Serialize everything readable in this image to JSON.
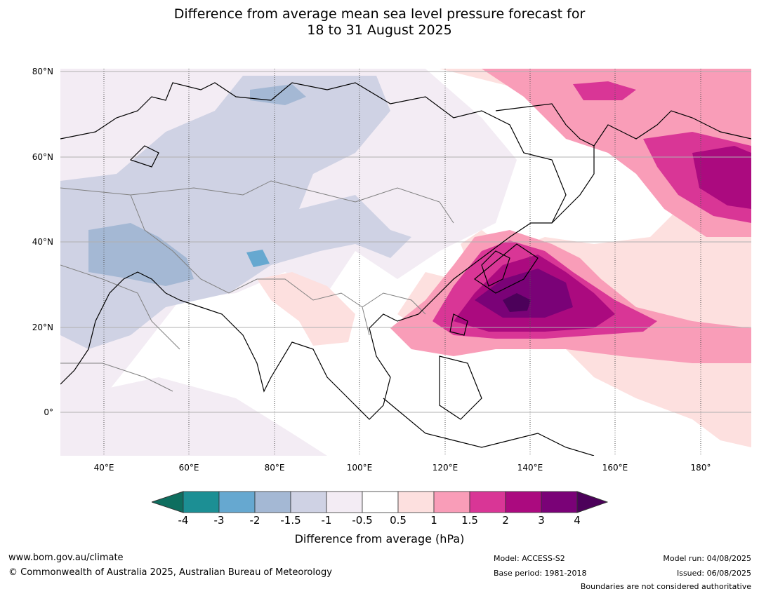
{
  "title_line1": "Difference from average mean sea level pressure forecast for",
  "title_line2": "18 to 31 August 2025",
  "map": {
    "lat_labels": [
      "80°N",
      "60°N",
      "40°N",
      "20°N",
      "0°"
    ],
    "lon_labels": [
      "40°E",
      "60°E",
      "80°E",
      "100°E",
      "120°E",
      "140°E",
      "160°E",
      "180°"
    ],
    "colors": {
      "ocean": "#ffffff",
      "coast": "#000000",
      "border": "#808080"
    }
  },
  "colorbar": {
    "label": "Difference from average (hPa)",
    "ticks": [
      "-4",
      "-3",
      "-2",
      "-1.5",
      "-1",
      "-0.5",
      "0.5",
      "1",
      "1.5",
      "2",
      "3",
      "4"
    ],
    "colors": [
      "#1c8f94",
      "#66a8d0",
      "#a4b8d4",
      "#cfd2e4",
      "#f3ecf4",
      "#ffffff",
      "#fde0df",
      "#f99db8",
      "#d93696",
      "#ab0a7f",
      "#7a0277"
    ],
    "under_color": "#0e6e5f",
    "over_color": "#4c015a"
  },
  "footer": {
    "website": "www.bom.gov.au/climate",
    "copyright": "© Commonwealth of Australia 2025, Australian Bureau of Meteorology",
    "model": "Model: ACCESS-S2",
    "base_period": "Base period: 1981-2018",
    "model_run": "Model run: 04/08/2025",
    "issued": "Issued: 06/08/2025",
    "disclaimer": "Boundaries are not considered authoritative"
  }
}
